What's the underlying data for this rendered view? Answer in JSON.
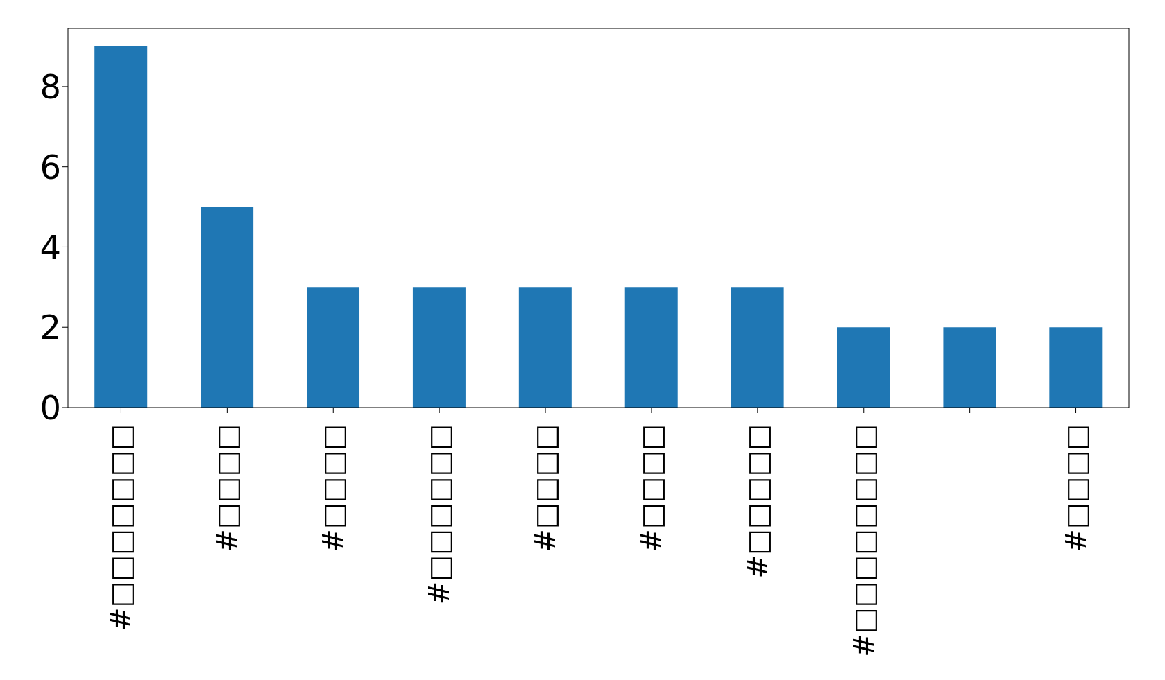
{
  "chart_data": {
    "type": "bar",
    "categories": [
      "#□□□□□□□",
      "#□□□□",
      "#□□□□",
      "#□□□□□□",
      "#□□□□",
      "#□□□□",
      "#□□□□□",
      "#□□□□□□□□",
      null,
      "#□□□□"
    ],
    "values": [
      9,
      5,
      3,
      3,
      3,
      3,
      3,
      2,
      2,
      2
    ],
    "color": "#1f77b4",
    "ylim": [
      0,
      9.45
    ],
    "yticks": [
      0,
      2,
      4,
      6,
      8
    ],
    "grid": false,
    "legend": false
  }
}
